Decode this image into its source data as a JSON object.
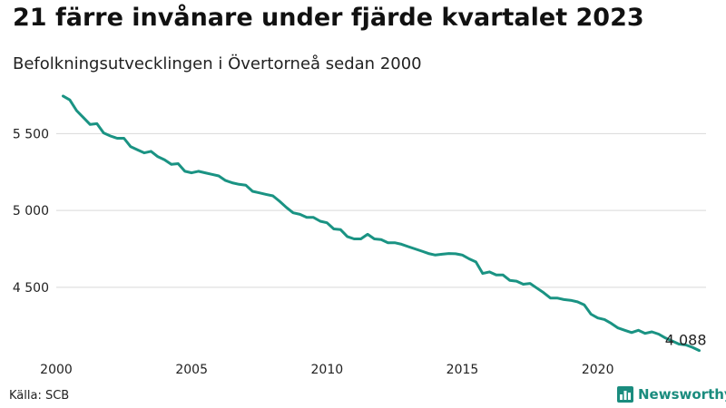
{
  "colors": {
    "line": "#1a9383",
    "grid": "#d9d9d9",
    "brand": "#1a8c7e"
  },
  "header": {
    "title": "21 färre invånare under fjärde kvartalet 2023",
    "subtitle": "Befolkningsutvecklingen i Övertorneå sedan 2000"
  },
  "footer": {
    "source": "Källa: SCB",
    "brand": "Newsworthy",
    "brand_icon": "bar-chart-icon"
  },
  "chart_data": {
    "type": "line",
    "title": "21 färre invånare under fjärde kvartalet 2023",
    "subtitle": "Befolkningsutvecklingen i Övertorneå sedan 2000",
    "xlabel": "",
    "ylabel": "",
    "xlim": [
      2000,
      2024
    ],
    "ylim": [
      4080,
      5780
    ],
    "grid": true,
    "x_ticks": [
      2000,
      2005,
      2010,
      2015,
      2020
    ],
    "x_tick_labels": [
      "2000",
      "2005",
      "2010",
      "2015",
      "2020"
    ],
    "y_ticks": [
      4500,
      5000,
      5500
    ],
    "y_tick_labels": [
      "4 500",
      "5 000",
      "5 500"
    ],
    "end_label": "4 088",
    "series": [
      {
        "x": [
          2000.25,
          2000.5,
          2000.75,
          2001,
          2001.25,
          2001.5,
          2001.75,
          2002,
          2002.25,
          2002.5,
          2002.75,
          2003,
          2003.25,
          2003.5,
          2003.75,
          2004,
          2004.25,
          2004.5,
          2004.75,
          2005,
          2005.25,
          2005.5,
          2005.75,
          2006,
          2006.25,
          2006.5,
          2006.75,
          2007,
          2007.25,
          2007.5,
          2007.75,
          2008,
          2008.25,
          2008.5,
          2008.75,
          2009,
          2009.25,
          2009.5,
          2009.75,
          2010,
          2010.25,
          2010.5,
          2010.75,
          2011,
          2011.25,
          2011.5,
          2011.75,
          2012,
          2012.25,
          2012.5,
          2012.75,
          2013,
          2013.25,
          2013.5,
          2013.75,
          2014,
          2014.25,
          2014.5,
          2014.75,
          2015,
          2015.25,
          2015.5,
          2015.75,
          2016,
          2016.25,
          2016.5,
          2016.75,
          2017,
          2017.25,
          2017.5,
          2017.75,
          2018,
          2018.25,
          2018.5,
          2018.75,
          2019,
          2019.25,
          2019.5,
          2019.75,
          2020,
          2020.25,
          2020.5,
          2020.75,
          2021,
          2021.25,
          2021.5,
          2021.75,
          2022,
          2022.25,
          2022.5,
          2022.75,
          2023,
          2023.25,
          2023.5,
          2023.75
        ],
        "values": [
          5745,
          5720,
          5650,
          5605,
          5560,
          5565,
          5505,
          5485,
          5470,
          5470,
          5415,
          5395,
          5375,
          5385,
          5350,
          5330,
          5300,
          5305,
          5255,
          5245,
          5255,
          5245,
          5235,
          5225,
          5195,
          5180,
          5170,
          5165,
          5125,
          5115,
          5105,
          5095,
          5060,
          5020,
          4985,
          4975,
          4955,
          4955,
          4930,
          4920,
          4880,
          4875,
          4830,
          4815,
          4815,
          4845,
          4815,
          4810,
          4790,
          4790,
          4780,
          4765,
          4750,
          4735,
          4720,
          4710,
          4715,
          4720,
          4718,
          4710,
          4685,
          4665,
          4590,
          4600,
          4580,
          4580,
          4545,
          4540,
          4520,
          4525,
          4495,
          4465,
          4430,
          4430,
          4420,
          4415,
          4405,
          4385,
          4325,
          4300,
          4290,
          4265,
          4235,
          4220,
          4205,
          4220,
          4200,
          4210,
          4195,
          4170,
          4150,
          4130,
          4125,
          4109,
          4088
        ]
      }
    ]
  }
}
